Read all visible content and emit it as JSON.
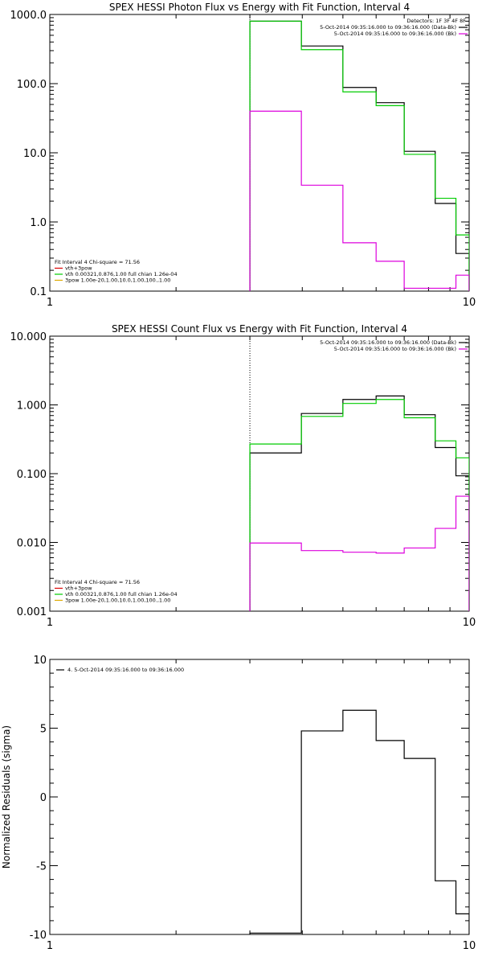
{
  "colors": {
    "black": "#000000",
    "green": "#00cc00",
    "magenta": "#dd00dd",
    "red": "#dd0000",
    "orange": "#ddaa00",
    "dotted": "#000000",
    "background": "#ffffff"
  },
  "chart_data": [
    {
      "type": "line",
      "step": true,
      "title": "SPEX HESSI Photon Flux vs Energy with Fit Function, Interval 4",
      "xlabel": "",
      "ylabel": "",
      "xscale": "log",
      "yscale": "log",
      "xlim": [
        1,
        10
      ],
      "ylim": [
        0.1,
        1000
      ],
      "x_ticks": [
        {
          "value": 1,
          "label": "1"
        },
        {
          "value": 10,
          "label": "10"
        }
      ],
      "y_ticks": [
        {
          "value": 0.1,
          "label": "0.1"
        },
        {
          "value": 1,
          "label": "1.0"
        },
        {
          "value": 10,
          "label": "10.0"
        },
        {
          "value": 100,
          "label": "100.0"
        },
        {
          "value": 1000,
          "label": "1000.0"
        }
      ],
      "vline": 3.0,
      "legend_right": {
        "header": "Detectors: 1F 3F 4F 8F",
        "lines": [
          {
            "text": "5-Oct-2014 09:35:16.000 to 09:36:16.000 (Data-Bk)",
            "color": "#000000"
          },
          {
            "text": "5-Oct-2014 09:35:16.000 to 09:36:16.000 (Bk)",
            "color": "#dd00dd"
          }
        ]
      },
      "legend_left": {
        "header": "Fit Interval  4   Chi-square = 71.56",
        "lines": [
          {
            "text": "vth+3pow",
            "color": "#dd0000"
          },
          {
            "text": "vth 0.00321,0.876,1.00  full chian 1.26e-04",
            "color": "#00cc00"
          },
          {
            "text": "3pow 1.00e-20,1.00,10.0,1.00,100.,1.00",
            "color": "#ddaa00"
          }
        ]
      },
      "edges": [
        3.0,
        3.98,
        5.0,
        6.0,
        7.0,
        8.3,
        9.3,
        10.0
      ],
      "series": [
        {
          "name": "Data-Bk",
          "color": "#000000",
          "values": [
            800,
            350,
            88,
            53,
            10.5,
            1.85,
            0.35
          ]
        },
        {
          "name": "vth+3pow",
          "color": "#00cc00",
          "values": [
            800,
            310,
            76,
            48,
            9.5,
            2.2,
            0.65
          ]
        },
        {
          "name": "Bk",
          "color": "#dd00dd",
          "values": [
            40,
            3.4,
            0.5,
            0.27,
            0.11,
            0.11,
            0.17
          ]
        }
      ]
    },
    {
      "type": "line",
      "step": true,
      "title": "SPEX HESSI Count Flux vs Energy with Fit Function, Interval 4",
      "xlabel": "",
      "ylabel": "",
      "xscale": "log",
      "yscale": "log",
      "xlim": [
        1,
        10
      ],
      "ylim": [
        0.001,
        10
      ],
      "x_ticks": [
        {
          "value": 1,
          "label": "1"
        },
        {
          "value": 10,
          "label": "10"
        }
      ],
      "y_ticks": [
        {
          "value": 0.001,
          "label": "0.001"
        },
        {
          "value": 0.01,
          "label": "0.010"
        },
        {
          "value": 0.1,
          "label": "0.100"
        },
        {
          "value": 1,
          "label": "1.000"
        },
        {
          "value": 10,
          "label": "10.000"
        }
      ],
      "vline": 3.0,
      "legend_right": {
        "header": "",
        "lines": [
          {
            "text": "5-Oct-2014 09:35:16.000 to 09:36:16.000 (Data-Bk)",
            "color": "#000000"
          },
          {
            "text": "5-Oct-2014 09:35:16.000 to 09:36:16.000 (Bk)",
            "color": "#dd00dd"
          }
        ]
      },
      "legend_left": {
        "header": "Fit Interval  4   Chi-square = 71.56",
        "lines": [
          {
            "text": "vth+3pow",
            "color": "#dd0000"
          },
          {
            "text": "vth 0.00321,0.876,1.00  full chian 1.26e-04",
            "color": "#00cc00"
          },
          {
            "text": "3pow 1.00e-20,1.00,10.0,1.00,100.,1.00",
            "color": "#ddaa00"
          }
        ]
      },
      "edges": [
        3.0,
        3.98,
        5.0,
        6.0,
        7.0,
        8.3,
        9.3,
        10.0
      ],
      "series": [
        {
          "name": "Data-Bk",
          "color": "#000000",
          "values": [
            0.2,
            0.75,
            1.2,
            1.35,
            0.72,
            0.24,
            0.093
          ]
        },
        {
          "name": "vth+3pow",
          "color": "#00cc00",
          "values": [
            0.27,
            0.68,
            1.05,
            1.2,
            0.65,
            0.3,
            0.17
          ]
        },
        {
          "name": "Bk",
          "color": "#dd00dd",
          "values": [
            0.0098,
            0.0076,
            0.0072,
            0.007,
            0.0083,
            0.016,
            0.047
          ]
        }
      ]
    },
    {
      "type": "line",
      "step": true,
      "title": "",
      "xlabel": "",
      "ylabel": "Normalized Residuals (sigma)",
      "xscale": "log",
      "yscale": "linear",
      "xlim": [
        1,
        10
      ],
      "ylim": [
        -10,
        10
      ],
      "x_ticks": [
        {
          "value": 1,
          "label": "1"
        },
        {
          "value": 10,
          "label": "10"
        }
      ],
      "y_ticks": [
        {
          "value": -10,
          "label": "-10"
        },
        {
          "value": -5,
          "label": "-5"
        },
        {
          "value": 0,
          "label": "0"
        },
        {
          "value": 5,
          "label": "5"
        },
        {
          "value": 10,
          "label": "10"
        }
      ],
      "legend_left_top": {
        "lines": [
          {
            "text": "4.  5-Oct-2014 09:35:16.000 to 09:36:16.000",
            "color": "#000000"
          }
        ]
      },
      "edges": [
        3.0,
        3.98,
        5.0,
        6.0,
        7.0,
        8.3,
        9.3,
        10.0
      ],
      "series": [
        {
          "name": "4.  5-Oct-2014 09:35:16.000 to 09:36:16.000",
          "color": "#000000",
          "values": [
            -9.9,
            4.8,
            6.3,
            4.1,
            2.8,
            -6.1,
            -8.5
          ]
        }
      ]
    }
  ]
}
